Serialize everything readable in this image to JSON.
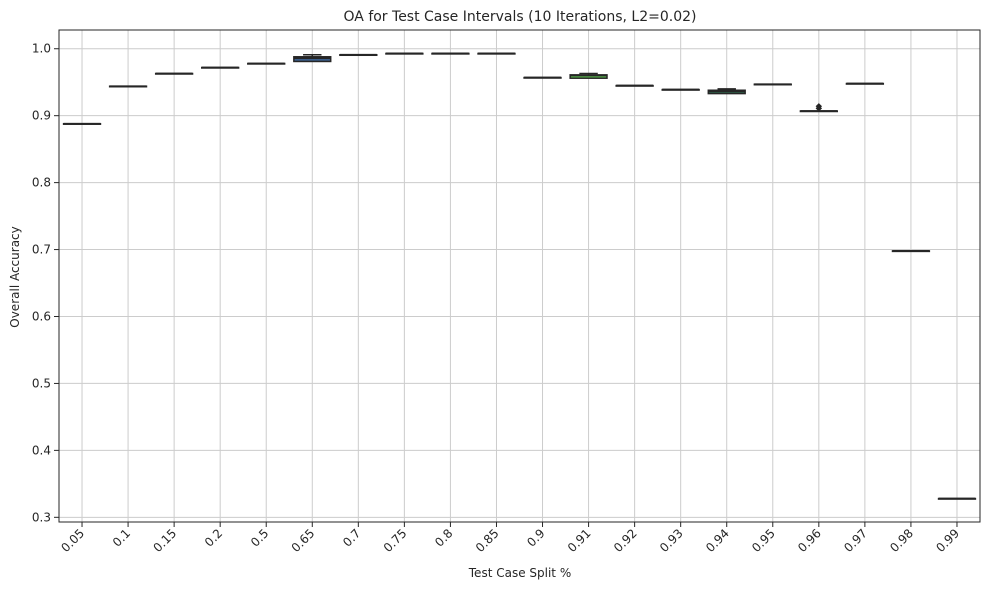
{
  "chart_data": {
    "type": "box",
    "title": "OA for Test Case Intervals (10 Iterations, L2=0.02)",
    "xlabel": "Test Case Split %",
    "ylabel": "Overall Accuracy",
    "ylim": [
      0.293,
      1.028
    ],
    "yticks": [
      "0.3",
      "0.4",
      "0.5",
      "0.6",
      "0.7",
      "0.8",
      "0.9",
      "1.0"
    ],
    "grid": true,
    "categories": [
      "0.05",
      "0.1",
      "0.15",
      "0.2",
      "0.5",
      "0.65",
      "0.7",
      "0.75",
      "0.8",
      "0.85",
      "0.9",
      "0.91",
      "0.92",
      "0.93",
      "0.94",
      "0.95",
      "0.96",
      "0.97",
      "0.98",
      "0.99"
    ],
    "boxes": [
      {
        "q1": 0.888,
        "median": 0.888,
        "q3": 0.888,
        "whisker_low": 0.888,
        "whisker_high": 0.888,
        "outliers": []
      },
      {
        "q1": 0.944,
        "median": 0.944,
        "q3": 0.944,
        "whisker_low": 0.944,
        "whisker_high": 0.944,
        "outliers": []
      },
      {
        "q1": 0.963,
        "median": 0.963,
        "q3": 0.963,
        "whisker_low": 0.963,
        "whisker_high": 0.963,
        "outliers": []
      },
      {
        "q1": 0.972,
        "median": 0.972,
        "q3": 0.972,
        "whisker_low": 0.972,
        "whisker_high": 0.972,
        "outliers": []
      },
      {
        "q1": 0.978,
        "median": 0.978,
        "q3": 0.978,
        "whisker_low": 0.978,
        "whisker_high": 0.978,
        "outliers": []
      },
      {
        "q1": 0.981,
        "median": 0.986,
        "q3": 0.988,
        "whisker_low": 0.981,
        "whisker_high": 0.991,
        "outliers": []
      },
      {
        "q1": 0.991,
        "median": 0.991,
        "q3": 0.991,
        "whisker_low": 0.991,
        "whisker_high": 0.991,
        "outliers": []
      },
      {
        "q1": 0.993,
        "median": 0.993,
        "q3": 0.993,
        "whisker_low": 0.993,
        "whisker_high": 0.993,
        "outliers": []
      },
      {
        "q1": 0.993,
        "median": 0.993,
        "q3": 0.993,
        "whisker_low": 0.993,
        "whisker_high": 0.993,
        "outliers": []
      },
      {
        "q1": 0.993,
        "median": 0.993,
        "q3": 0.993,
        "whisker_low": 0.993,
        "whisker_high": 0.993,
        "outliers": []
      },
      {
        "q1": 0.957,
        "median": 0.957,
        "q3": 0.957,
        "whisker_low": 0.957,
        "whisker_high": 0.957,
        "outliers": []
      },
      {
        "q1": 0.956,
        "median": 0.96,
        "q3": 0.961,
        "whisker_low": 0.956,
        "whisker_high": 0.963,
        "outliers": []
      },
      {
        "q1": 0.945,
        "median": 0.945,
        "q3": 0.945,
        "whisker_low": 0.945,
        "whisker_high": 0.945,
        "outliers": []
      },
      {
        "q1": 0.939,
        "median": 0.939,
        "q3": 0.939,
        "whisker_low": 0.939,
        "whisker_high": 0.939,
        "outliers": []
      },
      {
        "q1": 0.933,
        "median": 0.936,
        "q3": 0.938,
        "whisker_low": 0.933,
        "whisker_high": 0.94,
        "outliers": []
      },
      {
        "q1": 0.947,
        "median": 0.947,
        "q3": 0.947,
        "whisker_low": 0.947,
        "whisker_high": 0.947,
        "outliers": []
      },
      {
        "q1": 0.907,
        "median": 0.907,
        "q3": 0.907,
        "whisker_low": 0.907,
        "whisker_high": 0.907,
        "outliers": [
          0.914,
          0.911
        ]
      },
      {
        "q1": 0.948,
        "median": 0.948,
        "q3": 0.948,
        "whisker_low": 0.948,
        "whisker_high": 0.948,
        "outliers": []
      },
      {
        "q1": 0.698,
        "median": 0.698,
        "q3": 0.698,
        "whisker_low": 0.698,
        "whisker_high": 0.698,
        "outliers": []
      },
      {
        "q1": 0.328,
        "median": 0.328,
        "q3": 0.328,
        "whisker_low": 0.328,
        "whisker_high": 0.328,
        "outliers": []
      }
    ],
    "box_colors": [
      "#3a5f8a",
      "#3d6f8e",
      "#3f7f8f",
      "#41848e",
      "#2f8f8a",
      "#3b5e8c",
      "#2b8a7f",
      "#26947a",
      "#29a06f",
      "#3aaa64",
      "#4db85a",
      "#5ec14f",
      "#2e7f8e",
      "#2f8a8b",
      "#35a06f",
      "#2e9a77",
      "#2a8480",
      "#3aa868",
      "#44b460",
      "#52bb56"
    ],
    "line_color": "#262626"
  }
}
